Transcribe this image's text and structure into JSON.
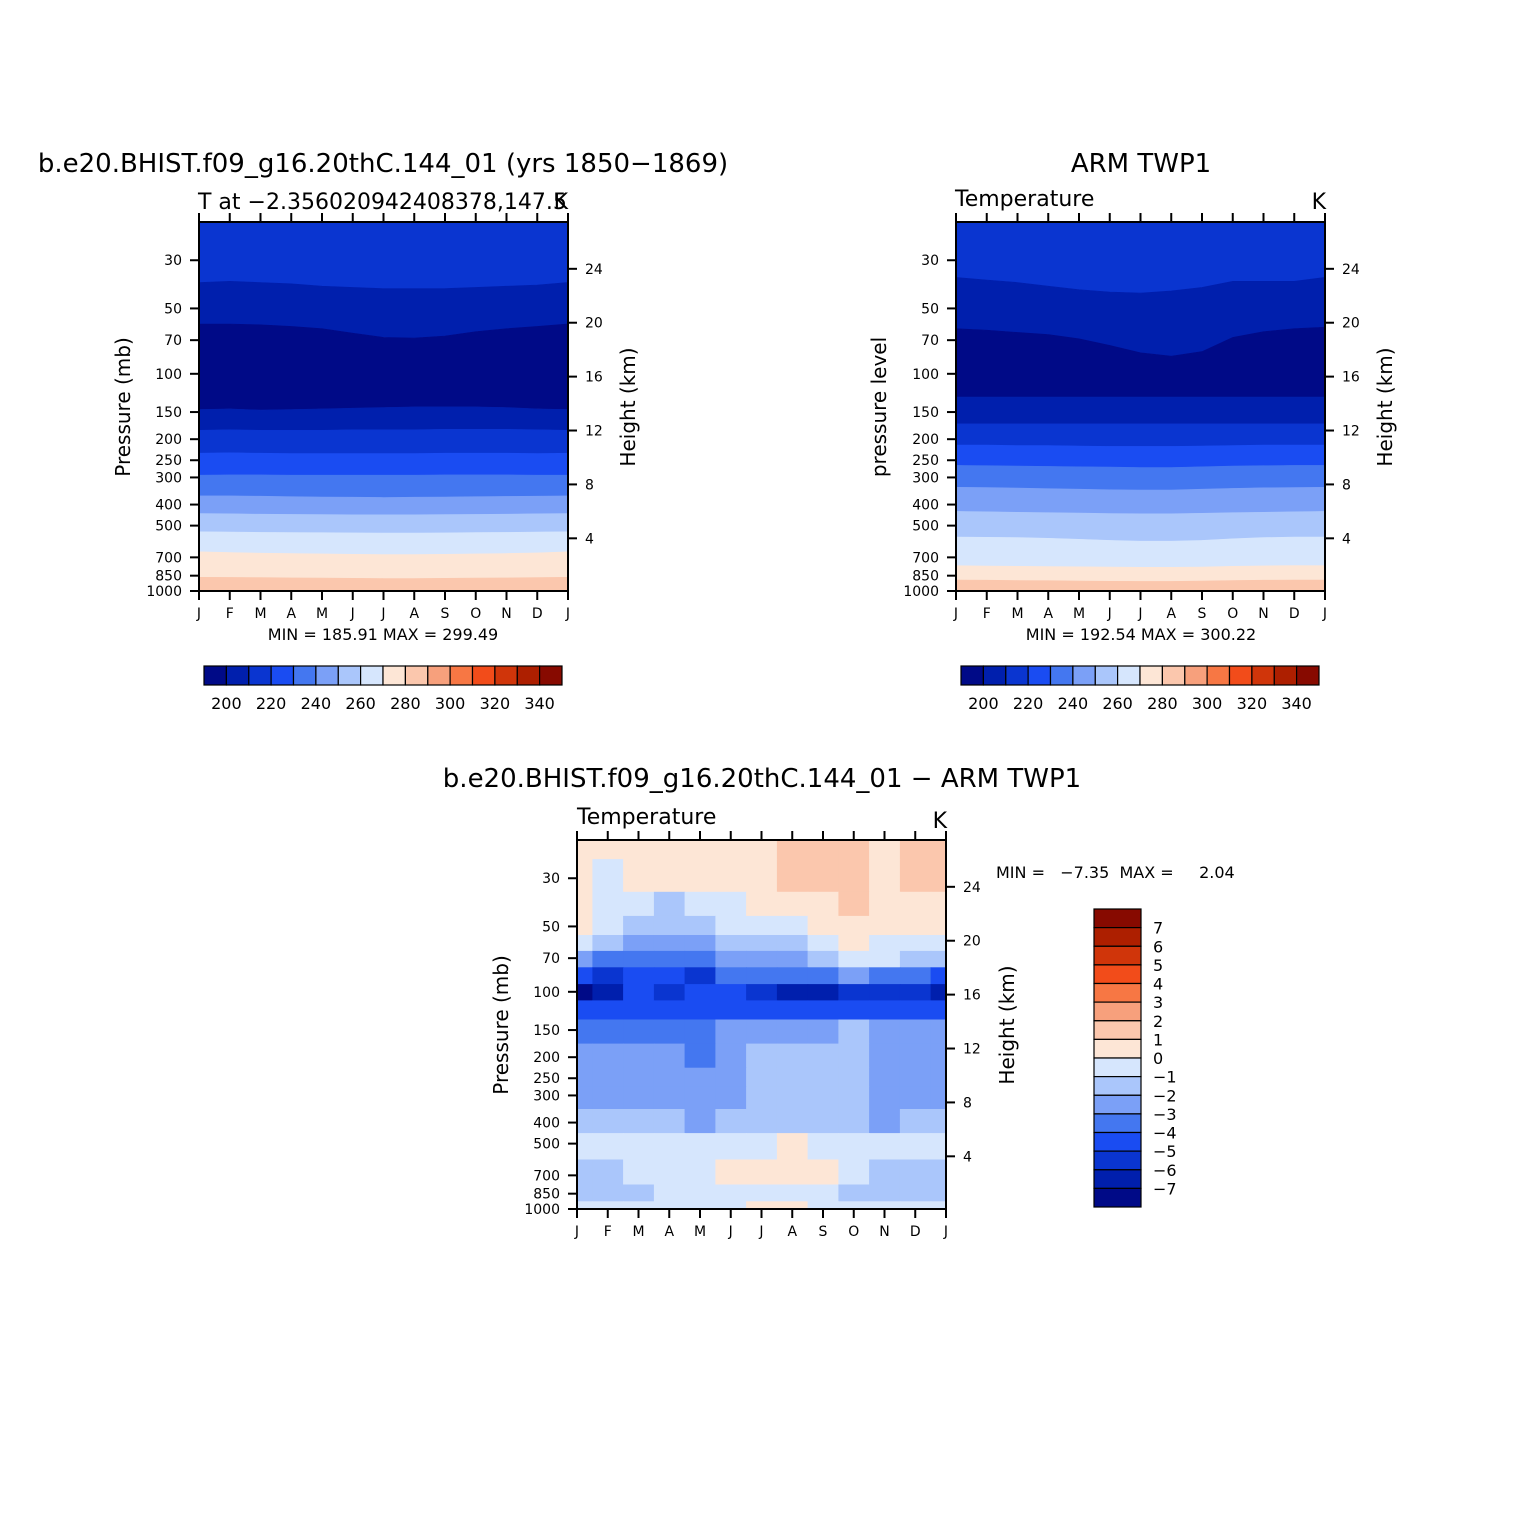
{
  "panels": [
    {
      "title": "b.e20.BHIST.f09_g16.20thC.144_01 (yrs 1850−1869)",
      "subtitle_left": "T at −2.356020942408378,147.5",
      "subtitle_right": "K",
      "ylabel_left": "Pressure (mb)",
      "ylabel_right": "Height (km)",
      "stats": "MIN = 185.91  MAX = 299.49"
    },
    {
      "title": "ARM TWP1",
      "subtitle_left": "Temperature",
      "subtitle_right": "K",
      "ylabel_left": "pressure level",
      "ylabel_right": "Height (km)",
      "stats": "MIN = 192.54  MAX = 300.22"
    },
    {
      "title": "b.e20.BHIST.f09_g16.20thC.144_01 − ARM TWP1",
      "subtitle_left": "Temperature",
      "subtitle_right": "K",
      "ylabel_left": "Pressure (mb)",
      "ylabel_right": "Height (km)",
      "stats": "MIN =   −7.35  MAX =     2.04"
    }
  ],
  "colors": {
    "temp_levels": [
      "#000a87",
      "#001fad",
      "#0a35d0",
      "#1a4cf2",
      "#4477f0",
      "#7ba0f7",
      "#aac6fb",
      "#d6e6fd",
      "#fde6d6",
      "#fbc7ad",
      "#f7a07c",
      "#f77744",
      "#f24c1a",
      "#d0350a",
      "#ad1f00",
      "#870a00"
    ],
    "diff_levels": [
      "#000a87",
      "#001fad",
      "#0a35d0",
      "#1a4cf2",
      "#4477f0",
      "#7ba0f7",
      "#aac6fb",
      "#d6e6fd",
      "#fde6d6",
      "#fbc7ad",
      "#f7a07c",
      "#f77744",
      "#f24c1a",
      "#d0350a",
      "#ad1f00",
      "#870a00"
    ]
  },
  "chart_data": [
    {
      "type": "contour",
      "name": "model",
      "x": [
        "J",
        "F",
        "M",
        "A",
        "M",
        "J",
        "J",
        "A",
        "S",
        "O",
        "N",
        "D",
        "J"
      ],
      "pressure_levels": [
        1000,
        850,
        700,
        500,
        400,
        300,
        250,
        200,
        150,
        100,
        70,
        50,
        30
      ],
      "height_km_ticks": [
        4,
        8,
        12,
        16,
        20,
        24
      ],
      "ylim_mb": [
        1000,
        20
      ],
      "y_scale": "log",
      "contour_boundaries_mb": [
        [
          20,
          20,
          20,
          20,
          20,
          20,
          20,
          20,
          20,
          20,
          20,
          20,
          20
        ],
        [
          38,
          37.5,
          38,
          38.5,
          39.5,
          40,
          40.5,
          40.5,
          40.5,
          40,
          39.5,
          39,
          38
        ],
        [
          59,
          59,
          59.5,
          60.5,
          62,
          65,
          68,
          68.5,
          67,
          64,
          62,
          60.5,
          59
        ],
        [
          146,
          145,
          147,
          146,
          145,
          144,
          143,
          142,
          142,
          142,
          143,
          145,
          146
        ],
        [
          182,
          181,
          182,
          182,
          182,
          181,
          181,
          181,
          180,
          180,
          180,
          181,
          182
        ],
        [
          232,
          231,
          232,
          233,
          233,
          233,
          233,
          233,
          232,
          232,
          232,
          233,
          232
        ],
        [
          293,
          292,
          292,
          293,
          293,
          293,
          293,
          293,
          292,
          292,
          292,
          293,
          293
        ],
        [
          365,
          365,
          366,
          368,
          369,
          370,
          371,
          370,
          369,
          368,
          367,
          366,
          365
        ],
        [
          440,
          441,
          443,
          444,
          445,
          446,
          446,
          446,
          445,
          444,
          443,
          441,
          440
        ],
        [
          534,
          535,
          537,
          538,
          539,
          540,
          541,
          541,
          540,
          538,
          537,
          535,
          534
        ],
        [
          660,
          665,
          670,
          672,
          675,
          678,
          680,
          680,
          678,
          675,
          672,
          668,
          660
        ],
        [
          865,
          866,
          868,
          870,
          872,
          874,
          876,
          876,
          874,
          872,
          870,
          868,
          865
        ],
        [
          1000,
          1000,
          1000,
          1000,
          1000,
          1000,
          1000,
          1000,
          1000,
          1000,
          1000,
          1000,
          1000
        ]
      ],
      "band_color_index": [
        2,
        1,
        0,
        1,
        2,
        3,
        4,
        5,
        6,
        7,
        8,
        9
      ],
      "min": 185.91,
      "max": 299.49
    },
    {
      "type": "contour",
      "name": "obs",
      "x": [
        "J",
        "F",
        "M",
        "A",
        "M",
        "J",
        "J",
        "A",
        "S",
        "O",
        "N",
        "D",
        "J"
      ],
      "pressure_levels": [
        1000,
        850,
        700,
        500,
        400,
        300,
        250,
        200,
        150,
        100,
        70,
        50,
        30
      ],
      "height_km_ticks": [
        4,
        8,
        12,
        16,
        20,
        24
      ],
      "ylim_mb": [
        1000,
        20
      ],
      "y_scale": "log",
      "contour_boundaries_mb": [
        [
          20,
          20,
          20,
          20,
          20,
          20,
          20,
          20,
          20,
          20,
          20,
          20,
          20
        ],
        [
          36,
          37,
          38,
          39.5,
          41,
          42,
          42.5,
          41.5,
          40,
          37.5,
          37.5,
          37.5,
          36
        ],
        [
          62,
          63,
          64.5,
          66,
          69,
          74,
          80,
          83,
          79,
          68,
          64,
          62,
          61
        ],
        [
          128,
          128,
          128,
          128,
          128,
          128,
          128,
          128,
          128,
          128,
          128,
          128,
          128
        ],
        [
          170,
          170,
          170,
          170,
          170,
          170,
          170,
          170,
          170,
          170,
          170,
          170,
          170
        ],
        [
          213,
          213,
          214,
          214,
          215,
          216,
          216,
          216,
          215,
          214,
          213,
          213,
          213
        ],
        [
          264,
          265,
          266,
          267,
          268,
          269,
          270,
          270,
          268,
          266,
          265,
          264,
          264
        ],
        [
          333,
          334,
          336,
          338,
          340,
          342,
          343,
          343,
          340,
          337,
          335,
          334,
          333
        ],
        [
          430,
          432,
          434,
          436,
          438,
          440,
          441,
          441,
          439,
          436,
          434,
          432,
          430
        ],
        [
          565,
          566,
          568,
          572,
          578,
          585,
          590,
          590,
          585,
          575,
          568,
          565,
          565
        ],
        [
          765,
          768,
          770,
          772,
          774,
          776,
          778,
          778,
          776,
          770,
          766,
          764,
          765
        ],
        [
          890,
          892,
          895,
          897,
          900,
          902,
          903,
          903,
          900,
          895,
          892,
          890,
          890
        ],
        [
          1000,
          1000,
          1000,
          1000,
          1000,
          1000,
          1000,
          1000,
          1000,
          1000,
          1000,
          1000,
          1000
        ]
      ],
      "band_color_index": [
        2,
        1,
        0,
        1,
        2,
        3,
        4,
        5,
        6,
        7,
        8,
        9
      ],
      "min": 192.54,
      "max": 300.22
    },
    {
      "type": "contour",
      "name": "difference",
      "x": [
        "J",
        "F",
        "M",
        "A",
        "M",
        "J",
        "J",
        "A",
        "S",
        "O",
        "N",
        "D",
        "J"
      ],
      "pressure_levels": [
        1000,
        850,
        700,
        500,
        400,
        300,
        250,
        200,
        150,
        100,
        70,
        50,
        30
      ],
      "height_km_ticks": [
        4,
        8,
        12,
        16,
        20,
        24
      ],
      "ylim_mb": [
        1000,
        20
      ],
      "y_scale": "log",
      "rows_mb": [
        20,
        30,
        40,
        50,
        60,
        70,
        85,
        100,
        120,
        150,
        200,
        250,
        300,
        400,
        500,
        700,
        850,
        1000
      ],
      "values": [
        [
          0.5,
          0.5,
          0.5,
          0.5,
          0.5,
          0.5,
          0.5,
          1.5,
          1.5,
          1.5,
          0.5,
          1.5,
          1.5
        ],
        [
          0.5,
          -0.5,
          0.5,
          0.5,
          0.5,
          0.5,
          0.5,
          1.5,
          1.5,
          1.5,
          0.5,
          1.5,
          1.5
        ],
        [
          0.5,
          -0.5,
          -0.5,
          -1.5,
          -0.5,
          -0.5,
          0.5,
          0.5,
          0.5,
          1.5,
          0.5,
          0.5,
          0.5
        ],
        [
          0.5,
          -0.5,
          -1.5,
          -1.5,
          -1.5,
          -0.5,
          -0.5,
          -0.5,
          0.5,
          0.5,
          0.5,
          0.5,
          0.5
        ],
        [
          -0.5,
          -1.5,
          -2.5,
          -2.5,
          -2.5,
          -1.5,
          -1.5,
          -1.5,
          -0.5,
          0.5,
          -0.5,
          -0.5,
          -0.5
        ],
        [
          -2.5,
          -3.5,
          -3.5,
          -3.5,
          -3.5,
          -2.5,
          -2.5,
          -2.5,
          -1.5,
          -0.5,
          -0.5,
          -1.5,
          -1.5
        ],
        [
          -4.5,
          -5.5,
          -4.5,
          -4.5,
          -5.5,
          -3.5,
          -3.5,
          -3.5,
          -3.5,
          -2.5,
          -3.5,
          -3.5,
          -4.5
        ],
        [
          -7.5,
          -6.5,
          -4.5,
          -5.5,
          -4.5,
          -4.5,
          -5.5,
          -6.5,
          -6.5,
          -5.5,
          -5.5,
          -5.5,
          -6.5
        ],
        [
          -4.5,
          -4.5,
          -4.5,
          -4.5,
          -4.5,
          -4.5,
          -4.5,
          -4.5,
          -4.5,
          -4.5,
          -4.5,
          -4.5,
          -4.5
        ],
        [
          -3.5,
          -3.5,
          -3.5,
          -3.5,
          -3.5,
          -2.5,
          -2.5,
          -2.5,
          -2.5,
          -1.5,
          -2.5,
          -2.5,
          -2.5
        ],
        [
          -2.5,
          -2.5,
          -2.5,
          -2.5,
          -3.5,
          -2.5,
          -1.5,
          -1.5,
          -1.5,
          -1.5,
          -2.5,
          -2.5,
          -2.5
        ],
        [
          -2.5,
          -2.5,
          -2.5,
          -2.5,
          -2.5,
          -2.5,
          -1.5,
          -1.5,
          -1.5,
          -1.5,
          -2.5,
          -2.5,
          -2.5
        ],
        [
          -2.5,
          -2.5,
          -2.5,
          -2.5,
          -2.5,
          -2.5,
          -1.5,
          -1.5,
          -1.5,
          -1.5,
          -2.5,
          -2.5,
          -2.5
        ],
        [
          -1.5,
          -1.5,
          -1.5,
          -1.5,
          -2.5,
          -1.5,
          -1.5,
          -1.5,
          -1.5,
          -1.5,
          -2.5,
          -1.5,
          -1.5
        ],
        [
          -0.5,
          -0.5,
          -0.5,
          -0.5,
          -0.5,
          -0.5,
          -0.5,
          0.5,
          -0.5,
          -0.5,
          -0.5,
          -0.5,
          -0.5
        ],
        [
          -1.5,
          -1.5,
          -0.5,
          -0.5,
          -0.5,
          0.5,
          0.5,
          0.5,
          0.5,
          -0.5,
          -1.5,
          -1.5,
          -1.5
        ],
        [
          -1.5,
          -1.5,
          -1.5,
          -0.5,
          -0.5,
          -0.5,
          -0.5,
          -0.5,
          -0.5,
          -1.5,
          -1.5,
          -1.5,
          -1.5
        ],
        [
          -0.5,
          -0.5,
          -0.5,
          -0.5,
          -0.5,
          -0.5,
          0.5,
          0.5,
          -0.5,
          -0.5,
          -0.5,
          -0.5,
          -0.5
        ]
      ],
      "min": -7.35,
      "max": 2.04
    }
  ],
  "colorbars": [
    {
      "orientation": "horizontal",
      "labels": [
        "200",
        "220",
        "240",
        "260",
        "280",
        "300",
        "320",
        "340"
      ]
    },
    {
      "orientation": "horizontal",
      "labels": [
        "200",
        "220",
        "240",
        "260",
        "280",
        "300",
        "320",
        "340"
      ]
    },
    {
      "orientation": "vertical",
      "labels": [
        "7",
        "6",
        "5",
        "4",
        "3",
        "2",
        "1",
        "0",
        "−1",
        "−2",
        "−3",
        "−4",
        "−5",
        "−6",
        "−7"
      ]
    }
  ]
}
